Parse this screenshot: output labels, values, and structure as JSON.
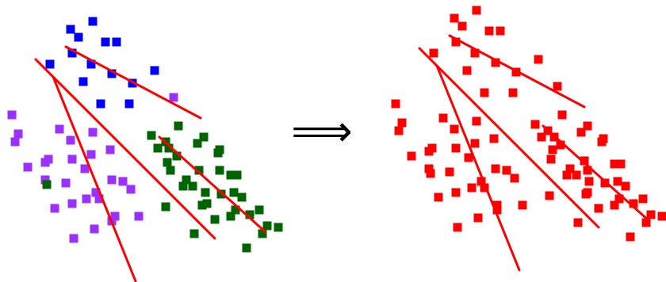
{
  "figure": {
    "arrow_glyph": "⟹",
    "colors": {
      "blue": "#0000ff",
      "purple": "#9b30ff",
      "green": "#006400",
      "red": "#ff0000",
      "line": "#ff0000",
      "background": "#ffffff"
    },
    "left_panel": {
      "clusters": [
        {
          "name": "blue",
          "color": "#0000ff",
          "points": [
            [
              117,
              27
            ],
            [
              89,
              37
            ],
            [
              99,
              47
            ],
            [
              133,
              53
            ],
            [
              147,
              53
            ],
            [
              91,
              67
            ],
            [
              63,
              81
            ],
            [
              115,
              81
            ],
            [
              141,
              93
            ],
            [
              195,
              89
            ],
            [
              105,
              103
            ],
            [
              167,
              105
            ],
            [
              127,
              131
            ],
            [
              163,
              131
            ]
          ]
        },
        {
          "name": "purple",
          "color": "#9b30ff",
          "points": [
            [
              219,
              123
            ],
            [
              15,
              145
            ],
            [
              23,
              169
            ],
            [
              19,
              179
            ],
            [
              75,
              163
            ],
            [
              117,
              167
            ],
            [
              89,
              177
            ],
            [
              139,
              189
            ],
            [
              115,
              195
            ],
            [
              61,
              201
            ],
            [
              91,
              201
            ],
            [
              57,
              205
            ],
            [
              35,
              211
            ],
            [
              107,
              213
            ],
            [
              57,
              227
            ],
            [
              83,
              231
            ],
            [
              141,
              227
            ],
            [
              155,
              229
            ],
            [
              165,
              239
            ],
            [
              121,
              243
            ],
            [
              125,
              251
            ],
            [
              109,
              251
            ],
            [
              91,
              257
            ],
            [
              69,
              263
            ],
            [
              145,
              273
            ],
            [
              175,
              273
            ],
            [
              141,
              279
            ],
            [
              119,
              289
            ],
            [
              93,
              301
            ]
          ]
        },
        {
          "name": "green",
          "color": "#006400",
          "points": [
            [
              225,
              159
            ],
            [
              191,
              171
            ],
            [
              257,
              173
            ],
            [
              209,
              179
            ],
            [
              249,
              181
            ],
            [
              199,
              187
            ],
            [
              213,
              187
            ],
            [
              277,
              189
            ],
            [
              275,
              193
            ],
            [
              223,
              197
            ],
            [
              211,
              205
            ],
            [
              215,
              215
            ],
            [
              251,
              215
            ],
            [
              277,
              215
            ],
            [
              291,
              221
            ],
            [
              299,
              221
            ],
            [
              235,
              227
            ],
            [
              59,
              233
            ],
            [
              231,
              235
            ],
            [
              243,
              235
            ],
            [
              259,
              243
            ],
            [
              279,
              245
            ],
            [
              295,
              243
            ],
            [
              305,
              249
            ],
            [
              255,
              259
            ],
            [
              261,
              257
            ],
            [
              209,
              261
            ],
            [
              297,
              265
            ],
            [
              327,
              265
            ],
            [
              291,
              273
            ],
            [
              315,
              271
            ],
            [
              271,
              277
            ],
            [
              337,
              285
            ],
            [
              351,
              287
            ],
            [
              331,
              295
            ],
            [
              245,
              295
            ],
            [
              311,
              313
            ]
          ]
        }
      ],
      "lines": [
        [
          [
            83,
            59
          ],
          [
            253,
            149
          ]
        ],
        [
          [
            45,
            75
          ],
          [
            271,
            301
          ]
        ],
        [
          [
            67,
            97
          ],
          [
            171,
            355
          ]
        ],
        [
          [
            201,
            173
          ],
          [
            335,
            293
          ]
        ]
      ]
    },
    "right_panel": {
      "clusters": [
        {
          "name": "red",
          "color": "#ff0000",
          "points": [
            [
              601,
              13
            ],
            [
              573,
              23
            ],
            [
              583,
              33
            ],
            [
              617,
              39
            ],
            [
              631,
              39
            ],
            [
              575,
              53
            ],
            [
              547,
              67
            ],
            [
              599,
              67
            ],
            [
              625,
              79
            ],
            [
              679,
              75
            ],
            [
              589,
              89
            ],
            [
              651,
              91
            ],
            [
              703,
              109
            ],
            [
              611,
              117
            ],
            [
              647,
              117
            ],
            [
              499,
              131
            ],
            [
              709,
              145
            ],
            [
              559,
              149
            ],
            [
              601,
              153
            ],
            [
              507,
              155
            ],
            [
              503,
              165
            ],
            [
              675,
              157
            ],
            [
              741,
              159
            ],
            [
              573,
              163
            ],
            [
              691,
              165
            ],
            [
              683,
              173
            ],
            [
              699,
              173
            ],
            [
              733,
              167
            ],
            [
              761,
              175
            ],
            [
              623,
              175
            ],
            [
              599,
              181
            ],
            [
              759,
              179
            ],
            [
              707,
              183
            ],
            [
              545,
              187
            ],
            [
              541,
              191
            ],
            [
              575,
              187
            ],
            [
              697,
              189
            ],
            [
              519,
              197
            ],
            [
              695,
              201
            ],
            [
              591,
              199
            ],
            [
              737,
              203
            ],
            [
              775,
              207
            ],
            [
              783,
              207
            ],
            [
              541,
              213
            ],
            [
              625,
              213
            ],
            [
              639,
              215
            ],
            [
              719,
              213
            ],
            [
              741,
              215
            ],
            [
              567,
              217
            ],
            [
              543,
              219
            ],
            [
              715,
              221
            ],
            [
              727,
              221
            ],
            [
              649,
              225
            ],
            [
              607,
              229
            ],
            [
              779,
              229
            ],
            [
              743,
              229
            ],
            [
              763,
              231
            ],
            [
              789,
              235
            ],
            [
              595,
              237
            ],
            [
              611,
              237
            ],
            [
              575,
              243
            ],
            [
              739,
              245
            ],
            [
              693,
              247
            ],
            [
              553,
              249
            ],
            [
              741,
              243
            ],
            [
              781,
              251
            ],
            [
              811,
              251
            ],
            [
              799,
              257
            ],
            [
              627,
              259
            ],
            [
              659,
              259
            ],
            [
              775,
              259
            ],
            [
              755,
              263
            ],
            [
              627,
              265
            ],
            [
              821,
              271
            ],
            [
              835,
              273
            ],
            [
              603,
              275
            ],
            [
              815,
              281
            ],
            [
              729,
              281
            ],
            [
              577,
              287
            ],
            [
              795,
              299
            ]
          ]
        }
      ],
      "lines": [
        [
          [
            567,
            45
          ],
          [
            737,
            135
          ]
        ],
        [
          [
            529,
            61
          ],
          [
            755,
            287
          ]
        ],
        [
          [
            551,
            83
          ],
          [
            655,
            341
          ]
        ],
        [
          [
            685,
            159
          ],
          [
            819,
            279
          ]
        ]
      ]
    }
  }
}
